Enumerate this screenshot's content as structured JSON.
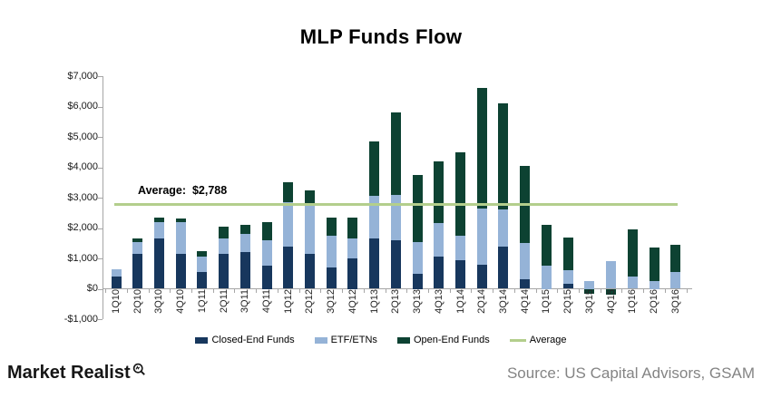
{
  "title": "MLP Funds Flow",
  "footer": {
    "logo_text": "Market Realist",
    "logo_icon": "magnifier-icon",
    "source": "Source: US Capital Advisors, GSAM"
  },
  "colors": {
    "closed_end": "#17375D",
    "etf_etn": "#95B3D7",
    "open_end": "#0D4232",
    "average_line": "#B3CE8C",
    "axis": "#A6A6A6",
    "source_text": "#848484"
  },
  "chart_data": {
    "type": "bar",
    "stacked": true,
    "title": "MLP Funds Flow",
    "xlabel": "",
    "ylabel": "",
    "ylim": [
      -1000,
      7000
    ],
    "grid": false,
    "legend_position": "bottom",
    "y_ticks": [
      "$7,000",
      "$6,000",
      "$5,000",
      "$4,000",
      "$3,000",
      "$2,000",
      "$1,000",
      "$0",
      "-$1,000"
    ],
    "categories": [
      "1Q10",
      "2Q10",
      "3Q10",
      "4Q10",
      "1Q11",
      "2Q11",
      "3Q11",
      "4Q11",
      "1Q12",
      "2Q12",
      "3Q12",
      "4Q12",
      "1Q13",
      "2Q13",
      "3Q13",
      "4Q13",
      "1Q14",
      "2Q14",
      "3Q14",
      "4Q14",
      "1Q15",
      "2Q15",
      "3Q15",
      "4Q15",
      "1Q16",
      "2Q16",
      "3Q16"
    ],
    "series": [
      {
        "name": "Closed-End Funds",
        "color": "#17375D",
        "values": [
          400,
          1150,
          1650,
          1150,
          550,
          1150,
          1200,
          750,
          1400,
          1150,
          700,
          1000,
          1650,
          1600,
          500,
          1050,
          950,
          800,
          1400,
          300,
          0,
          150,
          0,
          0,
          0,
          0,
          0
        ]
      },
      {
        "name": "ETF/ETNs",
        "color": "#95B3D7",
        "values": [
          250,
          400,
          550,
          1050,
          500,
          500,
          600,
          850,
          1450,
          1650,
          1050,
          650,
          1400,
          1500,
          1050,
          1100,
          800,
          1850,
          1200,
          1200,
          750,
          450,
          250,
          900,
          400,
          250,
          550
        ]
      },
      {
        "name": "Open-End Funds",
        "color": "#0D4232",
        "values": [
          0,
          100,
          150,
          100,
          200,
          400,
          300,
          600,
          650,
          450,
          600,
          700,
          1800,
          2700,
          2200,
          2050,
          2750,
          3950,
          3500,
          2550,
          1350,
          1100,
          -150,
          -200,
          1550,
          1100,
          900
        ]
      }
    ],
    "average_line": {
      "label": "Average:  $2,788",
      "value": 2788,
      "color": "#B3CE8C",
      "legend_label": "Average"
    }
  }
}
